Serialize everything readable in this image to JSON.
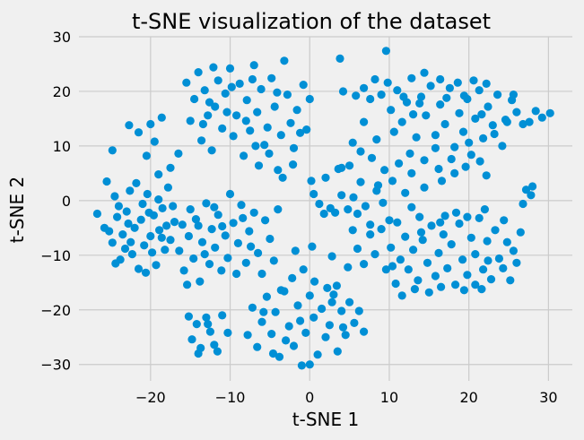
{
  "chart_data": {
    "type": "scatter",
    "title": "t-SNE visualization of the dataset",
    "xlabel": "t-SNE 1",
    "ylabel": "t-SNE 2",
    "xlim": [
      -29,
      33
    ],
    "ylim": [
      -33,
      30
    ],
    "xticks": [
      -20,
      -10,
      0,
      10,
      20,
      30
    ],
    "yticks": [
      -30,
      -20,
      -10,
      0,
      10,
      20,
      30
    ],
    "grid": true,
    "point_color": "#008fd5",
    "background": "#f0f0f0",
    "points": [
      [
        -26.7,
        -2.4
      ],
      [
        -25.5,
        3.5
      ],
      [
        -25.2,
        -5.6
      ],
      [
        -24.8,
        -7.7
      ],
      [
        -24.5,
        0.8
      ],
      [
        -24.2,
        -3.0
      ],
      [
        -23.8,
        -10.8
      ],
      [
        -23.5,
        -6.2
      ],
      [
        -23.0,
        -2.0
      ],
      [
        -22.6,
        1.8
      ],
      [
        -22.3,
        -9.8
      ],
      [
        -22.0,
        -5.0
      ],
      [
        -21.5,
        -12.5
      ],
      [
        -21.2,
        -3.5
      ],
      [
        -20.8,
        -8.2
      ],
      [
        -20.4,
        1.2
      ],
      [
        -20.0,
        -6.5
      ],
      [
        -19.6,
        -2.7
      ],
      [
        -19.3,
        -11.8
      ],
      [
        -18.9,
        -5.4
      ],
      [
        -18.5,
        -1.4
      ],
      [
        -18.2,
        -9.0
      ],
      [
        -17.8,
        2.4
      ],
      [
        -17.5,
        -7.2
      ],
      [
        -17.0,
        -3.9
      ],
      [
        -24.0,
        -1.0
      ],
      [
        -23.2,
        -8.8
      ],
      [
        -21.8,
        3.2
      ],
      [
        -20.6,
        -13.2
      ],
      [
        -19.0,
        0.2
      ],
      [
        -18.0,
        -4.6
      ],
      [
        -22.5,
        -7.6
      ],
      [
        -25.8,
        -5.0
      ],
      [
        -21.0,
        -0.6
      ],
      [
        -19.8,
        -9.5
      ],
      [
        -17.2,
        -1.0
      ],
      [
        -24.4,
        -11.5
      ],
      [
        -18.6,
        -6.8
      ],
      [
        -22.8,
        -4.2
      ],
      [
        -20.2,
        -2.2
      ],
      [
        -24.8,
        9.2
      ],
      [
        -22.7,
        13.8
      ],
      [
        -21.5,
        12.5
      ],
      [
        -20.0,
        14.0
      ],
      [
        -19.5,
        10.8
      ],
      [
        -18.6,
        15.2
      ],
      [
        -16.5,
        8.6
      ],
      [
        -20.5,
        8.2
      ],
      [
        -19.0,
        4.8
      ],
      [
        -17.5,
        6.0
      ],
      [
        -16.4,
        -9.2
      ],
      [
        -16.0,
        -4.4
      ],
      [
        -15.8,
        -12.8
      ],
      [
        -15.2,
        -6.5
      ],
      [
        -15.0,
        -1.6
      ],
      [
        -14.6,
        -10.6
      ],
      [
        -14.3,
        -3.4
      ],
      [
        -13.8,
        -14.8
      ],
      [
        -13.5,
        -7.6
      ],
      [
        -13.0,
        -0.5
      ],
      [
        -12.6,
        -11.6
      ],
      [
        -12.3,
        -5.2
      ],
      [
        -11.9,
        -8.6
      ],
      [
        -11.5,
        -2.6
      ],
      [
        -11.1,
        -12.8
      ],
      [
        -10.6,
        -6.4
      ],
      [
        -10.3,
        -10.5
      ],
      [
        -10.0,
        1.2
      ],
      [
        -9.6,
        -4.1
      ],
      [
        -9.0,
        -7.8
      ],
      [
        -8.6,
        -0.8
      ],
      [
        -8.0,
        -11.4
      ],
      [
        -7.6,
        -5.6
      ],
      [
        -7.0,
        -2.2
      ],
      [
        -6.5,
        -9.6
      ],
      [
        -6.0,
        -13.4
      ],
      [
        -5.6,
        -3.6
      ],
      [
        -5.0,
        -7.0
      ],
      [
        -4.5,
        -11.0
      ],
      [
        -4.0,
        -1.6
      ],
      [
        -15.4,
        -15.4
      ],
      [
        -14.0,
        -4.6
      ],
      [
        -12.0,
        -1.2
      ],
      [
        -9.2,
        -13.4
      ],
      [
        -7.4,
        -8.4
      ],
      [
        -11.0,
        -4.7
      ],
      [
        -13.2,
        -9.8
      ],
      [
        -8.4,
        -3.2
      ],
      [
        -15.5,
        21.6
      ],
      [
        -15.0,
        14.6
      ],
      [
        -14.5,
        18.6
      ],
      [
        -14.0,
        23.5
      ],
      [
        -13.6,
        11.0
      ],
      [
        -13.2,
        20.2
      ],
      [
        -12.8,
        15.6
      ],
      [
        -12.3,
        9.2
      ],
      [
        -11.9,
        17.2
      ],
      [
        -11.5,
        22.0
      ],
      [
        -11.0,
        13.2
      ],
      [
        -10.6,
        19.6
      ],
      [
        -10.0,
        24.2
      ],
      [
        -9.6,
        11.8
      ],
      [
        -9.2,
        15.6
      ],
      [
        -8.8,
        21.4
      ],
      [
        -8.3,
        8.2
      ],
      [
        -7.9,
        18.4
      ],
      [
        -7.5,
        12.8
      ],
      [
        -7.0,
        24.8
      ],
      [
        -6.6,
        16.2
      ],
      [
        -6.1,
        20.4
      ],
      [
        -5.7,
        10.2
      ],
      [
        -5.3,
        13.4
      ],
      [
        -4.8,
        22.4
      ],
      [
        -4.4,
        17.2
      ],
      [
        -4.0,
        5.6
      ],
      [
        -3.6,
        12.0
      ],
      [
        -3.2,
        25.6
      ],
      [
        -2.8,
        19.4
      ],
      [
        -2.4,
        14.2
      ],
      [
        -2.0,
        9.6
      ],
      [
        -1.6,
        16.6
      ],
      [
        -1.2,
        12.4
      ],
      [
        -0.8,
        21.2
      ],
      [
        -0.4,
        13.0
      ],
      [
        0.0,
        18.6
      ],
      [
        -13.4,
        14.0
      ],
      [
        -12.1,
        24.4
      ],
      [
        -10.4,
        16.2
      ],
      [
        -8.0,
        14.6
      ],
      [
        -6.4,
        6.4
      ],
      [
        -5.1,
        8.6
      ],
      [
        -3.4,
        4.2
      ],
      [
        -9.8,
        20.8
      ],
      [
        -7.2,
        22.2
      ],
      [
        -4.1,
        19.8
      ],
      [
        -2.1,
        6.6
      ],
      [
        -12.6,
        18.0
      ],
      [
        -6.8,
        10.0
      ],
      [
        -15.2,
        -21.2
      ],
      [
        -14.8,
        -25.4
      ],
      [
        -14.2,
        -22.6
      ],
      [
        -13.7,
        -27.0
      ],
      [
        -13.0,
        -21.4
      ],
      [
        -12.5,
        -24.0
      ],
      [
        -12.0,
        -26.4
      ],
      [
        -11.0,
        -21.0
      ],
      [
        -10.3,
        -24.2
      ],
      [
        -14.0,
        -28.0
      ],
      [
        -12.8,
        -22.6
      ],
      [
        -11.6,
        -27.6
      ],
      [
        -7.8,
        -24.6
      ],
      [
        -7.2,
        -19.6
      ],
      [
        -6.6,
        -26.8
      ],
      [
        -6.0,
        -22.2
      ],
      [
        -5.4,
        -17.6
      ],
      [
        -4.8,
        -24.4
      ],
      [
        -4.3,
        -20.4
      ],
      [
        -3.8,
        -28.6
      ],
      [
        -3.2,
        -16.6
      ],
      [
        -2.6,
        -23.0
      ],
      [
        -2.0,
        -26.6
      ],
      [
        -1.5,
        -19.2
      ],
      [
        -1.0,
        -30.2
      ],
      [
        -0.5,
        -24.2
      ],
      [
        0.0,
        -17.4
      ],
      [
        0.5,
        -21.4
      ],
      [
        1.0,
        -28.2
      ],
      [
        1.5,
        -19.8
      ],
      [
        2.0,
        -25.0
      ],
      [
        2.5,
        -22.8
      ],
      [
        3.0,
        -17.2
      ],
      [
        3.5,
        -27.6
      ],
      [
        4.0,
        -20.2
      ],
      [
        4.5,
        -24.6
      ],
      [
        5.0,
        -18.6
      ],
      [
        5.6,
        -22.4
      ],
      [
        6.2,
        -20.2
      ],
      [
        6.8,
        -24.0
      ],
      [
        -5.8,
        -20.4
      ],
      [
        -3.0,
        -25.6
      ],
      [
        0.0,
        -30.0
      ],
      [
        2.8,
        -18.6
      ],
      [
        -1.2,
        -22.0
      ],
      [
        4.2,
        -23.2
      ],
      [
        -4.6,
        -28.0
      ],
      [
        -3.6,
        -16.4
      ],
      [
        -2.2,
        -14.2
      ],
      [
        -0.8,
        -12.6
      ],
      [
        0.6,
        -14.8
      ],
      [
        2.2,
        -16.0
      ],
      [
        -1.8,
        -9.2
      ],
      [
        0.3,
        -8.4
      ],
      [
        2.8,
        -10.2
      ],
      [
        4.8,
        -12.2
      ],
      [
        3.4,
        -15.6
      ],
      [
        0.5,
        1.2
      ],
      [
        1.2,
        -0.6
      ],
      [
        1.8,
        -2.4
      ],
      [
        2.6,
        -1.4
      ],
      [
        3.2,
        -2.2
      ],
      [
        4.0,
        1.0
      ],
      [
        4.8,
        -1.6
      ],
      [
        5.5,
        0.6
      ],
      [
        6.0,
        -2.4
      ],
      [
        6.4,
        3.4
      ],
      [
        7.0,
        -1.0
      ],
      [
        7.6,
        -4.4
      ],
      [
        8.4,
        1.8
      ],
      [
        9.2,
        -0.4
      ],
      [
        10.0,
        -3.6
      ],
      [
        0.2,
        3.6
      ],
      [
        2.0,
        4.2
      ],
      [
        3.6,
        5.8
      ],
      [
        5.4,
        -5.4
      ],
      [
        6.0,
        -8.8
      ],
      [
        6.8,
        -11.6
      ],
      [
        7.6,
        -6.2
      ],
      [
        8.2,
        -9.8
      ],
      [
        9.0,
        -5.2
      ],
      [
        9.6,
        -12.6
      ],
      [
        10.2,
        -8.6
      ],
      [
        10.8,
        -15.2
      ],
      [
        11.4,
        -10.8
      ],
      [
        12.0,
        -6.6
      ],
      [
        12.4,
        -12.6
      ],
      [
        13.0,
        -9.0
      ],
      [
        13.6,
        -14.6
      ],
      [
        14.2,
        -7.2
      ],
      [
        14.8,
        -11.4
      ],
      [
        15.3,
        -4.6
      ],
      [
        15.8,
        -13.8
      ],
      [
        16.2,
        -9.6
      ],
      [
        16.8,
        -6.2
      ],
      [
        17.3,
        -12.4
      ],
      [
        17.8,
        -8.0
      ],
      [
        18.3,
        -15.4
      ],
      [
        18.8,
        -4.2
      ],
      [
        19.2,
        -10.8
      ],
      [
        19.8,
        -13.6
      ],
      [
        20.3,
        -6.8
      ],
      [
        20.8,
        -9.8
      ],
      [
        21.3,
        -3.2
      ],
      [
        21.8,
        -12.6
      ],
      [
        22.3,
        -7.4
      ],
      [
        22.8,
        -14.4
      ],
      [
        23.3,
        -5.4
      ],
      [
        23.8,
        -10.6
      ],
      [
        24.3,
        -12.4
      ],
      [
        24.8,
        -7.6
      ],
      [
        25.2,
        -14.6
      ],
      [
        25.6,
        -9.2
      ],
      [
        26.0,
        -11.4
      ],
      [
        26.5,
        -5.8
      ],
      [
        11.6,
        -17.4
      ],
      [
        13.2,
        -16.2
      ],
      [
        15.0,
        -16.8
      ],
      [
        16.5,
        -15.8
      ],
      [
        19.4,
        -16.4
      ],
      [
        20.8,
        -15.4
      ],
      [
        22.4,
        -11.0
      ],
      [
        11.0,
        -4.0
      ],
      [
        13.8,
        -3.0
      ],
      [
        17.0,
        -2.8
      ],
      [
        19.8,
        -3.0
      ],
      [
        22.0,
        -1.6
      ],
      [
        24.4,
        -3.6
      ],
      [
        10.4,
        -12.0
      ],
      [
        12.8,
        -1.2
      ],
      [
        16.4,
        -4.0
      ],
      [
        18.4,
        -2.2
      ],
      [
        21.6,
        -16.2
      ],
      [
        14.0,
        -5.8
      ],
      [
        3.8,
        26.0
      ],
      [
        6.8,
        20.6
      ],
      [
        7.6,
        18.6
      ],
      [
        8.2,
        22.2
      ],
      [
        9.0,
        19.4
      ],
      [
        9.6,
        27.4
      ],
      [
        10.2,
        16.6
      ],
      [
        11.0,
        20.2
      ],
      [
        11.6,
        14.4
      ],
      [
        12.2,
        18.0
      ],
      [
        12.8,
        22.4
      ],
      [
        13.4,
        11.6
      ],
      [
        14.0,
        19.0
      ],
      [
        14.6,
        15.6
      ],
      [
        15.2,
        21.0
      ],
      [
        15.8,
        12.0
      ],
      [
        16.4,
        17.6
      ],
      [
        17.0,
        14.0
      ],
      [
        17.6,
        20.6
      ],
      [
        18.2,
        9.8
      ],
      [
        18.8,
        16.0
      ],
      [
        19.3,
        12.6
      ],
      [
        19.8,
        18.6
      ],
      [
        20.3,
        8.4
      ],
      [
        20.8,
        15.0
      ],
      [
        21.3,
        20.2
      ],
      [
        21.8,
        11.4
      ],
      [
        22.4,
        17.2
      ],
      [
        23.0,
        13.8
      ],
      [
        23.6,
        19.4
      ],
      [
        24.2,
        10.0
      ],
      [
        24.8,
        14.4
      ],
      [
        25.4,
        18.4
      ],
      [
        26.0,
        16.2
      ],
      [
        26.8,
        14.0
      ],
      [
        27.6,
        14.4
      ],
      [
        28.4,
        16.4
      ],
      [
        29.2,
        15.2
      ],
      [
        30.2,
        16.0
      ],
      [
        20.6,
        22.0
      ],
      [
        22.2,
        21.4
      ],
      [
        18.6,
        21.6
      ],
      [
        16.4,
        22.2
      ],
      [
        14.4,
        23.4
      ],
      [
        13.0,
        15.8
      ],
      [
        15.8,
        9.6
      ],
      [
        17.8,
        7.6
      ],
      [
        19.6,
        6.2
      ],
      [
        21.4,
        7.2
      ],
      [
        22.2,
        4.6
      ],
      [
        10.6,
        12.6
      ],
      [
        12.6,
        8.6
      ],
      [
        8.4,
        11.2
      ],
      [
        6.4,
        9.0
      ],
      [
        5.4,
        10.6
      ],
      [
        6.8,
        14.4
      ],
      [
        7.8,
        7.8
      ],
      [
        9.4,
        5.6
      ],
      [
        11.2,
        6.8
      ],
      [
        12.8,
        5.0
      ],
      [
        14.4,
        7.4
      ],
      [
        16.2,
        5.8
      ],
      [
        18.2,
        5.0
      ],
      [
        20.0,
        10.6
      ],
      [
        23.2,
        12.2
      ],
      [
        24.6,
        14.8
      ],
      [
        8.6,
        2.8
      ],
      [
        10.4,
        3.6
      ],
      [
        12.0,
        1.4
      ],
      [
        14.4,
        2.4
      ],
      [
        16.6,
        3.6
      ],
      [
        5.0,
        6.4
      ],
      [
        4.0,
        6.0
      ],
      [
        4.2,
        20.0
      ],
      [
        5.8,
        19.2
      ],
      [
        9.8,
        21.6
      ],
      [
        11.8,
        19.0
      ],
      [
        13.8,
        17.8
      ],
      [
        17.2,
        18.8
      ],
      [
        19.4,
        19.2
      ],
      [
        21.6,
        15.8
      ],
      [
        25.6,
        19.4
      ],
      [
        27.2,
        2.0
      ],
      [
        26.8,
        -0.6
      ],
      [
        27.8,
        1.0
      ],
      [
        28.0,
        2.6
      ]
    ]
  }
}
